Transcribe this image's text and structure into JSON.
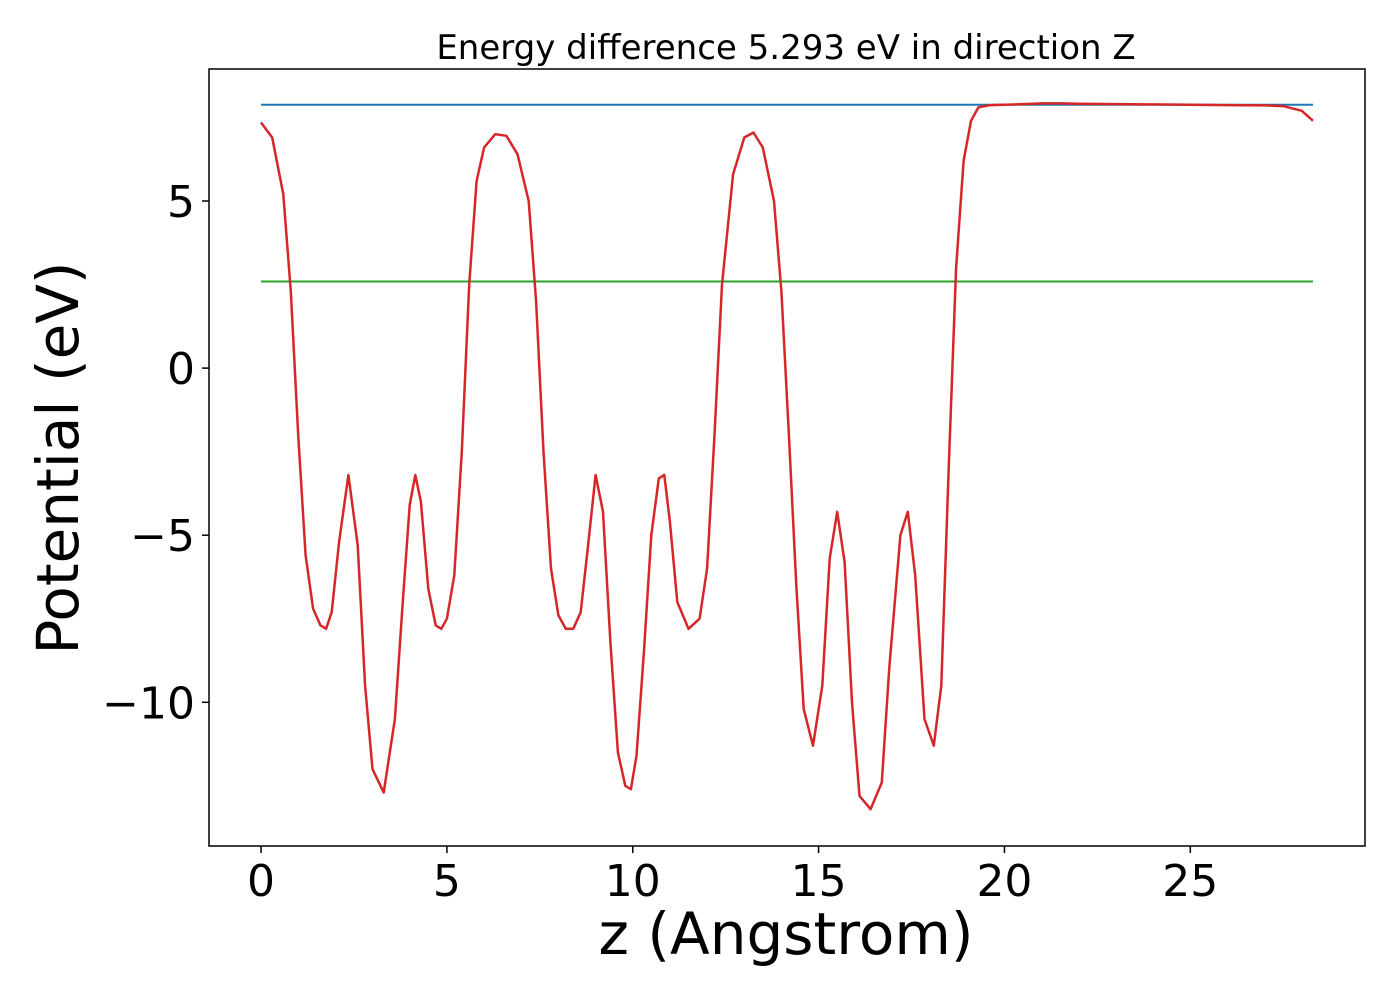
{
  "chart_data": {
    "type": "line",
    "title": "Energy difference 5.293 eV in direction Z",
    "xlabel": "z (Angstrom)",
    "ylabel": "Potential (eV)",
    "xlim": [
      -1.4,
      29.7
    ],
    "ylim": [
      -14.3,
      8.95
    ],
    "xticks": [
      0,
      5,
      10,
      15,
      20,
      25
    ],
    "xtick_labels": [
      "0",
      "5",
      "10",
      "15",
      "20",
      "25"
    ],
    "yticks": [
      -10,
      -5,
      0,
      5
    ],
    "ytick_labels": [
      "−10",
      "−5",
      "0",
      "5"
    ],
    "grid": false,
    "series": [
      {
        "color": "#1f77b4",
        "x": [
          0,
          28.3
        ],
        "y": [
          7.88,
          7.88
        ]
      },
      {
        "color": "#2ca02c",
        "x": [
          0,
          28.3
        ],
        "y": [
          2.59,
          2.59
        ]
      },
      {
        "color": "#d62728",
        "x": [
          0,
          0.3,
          0.6,
          0.8,
          1.0,
          1.2,
          1.4,
          1.6,
          1.75,
          1.9,
          2.1,
          2.35,
          2.6,
          2.8,
          3.0,
          3.3,
          3.6,
          3.8,
          4.0,
          4.15,
          4.3,
          4.5,
          4.7,
          4.85,
          5.0,
          5.2,
          5.4,
          5.6,
          5.8,
          6.0,
          6.3,
          6.6,
          6.9,
          7.2,
          7.4,
          7.6,
          7.8,
          8.0,
          8.2,
          8.4,
          8.6,
          8.8,
          9.0,
          9.2,
          9.4,
          9.6,
          9.8,
          9.95,
          10.1,
          10.3,
          10.5,
          10.7,
          10.85,
          11.0,
          11.2,
          11.5,
          11.8,
          12.0,
          12.2,
          12.4,
          12.7,
          13.0,
          13.25,
          13.5,
          13.8,
          14.0,
          14.2,
          14.4,
          14.6,
          14.85,
          15.1,
          15.3,
          15.5,
          15.7,
          15.9,
          16.1,
          16.4,
          16.7,
          16.9,
          17.2,
          17.4,
          17.6,
          17.85,
          18.1,
          18.3,
          18.5,
          18.7,
          18.9,
          19.1,
          19.3,
          19.6,
          20.0,
          20.5,
          21.0,
          21.5,
          22.0,
          23.0,
          24.0,
          25.0,
          26.0,
          27.0,
          27.5,
          28.0,
          28.3
        ],
        "y": [
          7.35,
          6.9,
          5.2,
          2.3,
          -2.0,
          -5.6,
          -7.2,
          -7.7,
          -7.8,
          -7.3,
          -5.2,
          -3.2,
          -5.3,
          -9.5,
          -12.0,
          -12.7,
          -10.5,
          -7.2,
          -4.1,
          -3.2,
          -4.0,
          -6.6,
          -7.7,
          -7.8,
          -7.5,
          -6.2,
          -2.5,
          2.5,
          5.6,
          6.6,
          7.0,
          6.95,
          6.4,
          5.0,
          2.0,
          -2.5,
          -6.0,
          -7.4,
          -7.8,
          -7.8,
          -7.3,
          -5.3,
          -3.2,
          -4.3,
          -8.2,
          -11.5,
          -12.5,
          -12.6,
          -11.6,
          -8.5,
          -5.0,
          -3.3,
          -3.2,
          -4.6,
          -7.0,
          -7.8,
          -7.5,
          -6.0,
          -2.0,
          2.5,
          5.8,
          6.9,
          7.05,
          6.6,
          5.0,
          2.3,
          -2.0,
          -6.5,
          -10.2,
          -11.3,
          -9.5,
          -5.7,
          -4.3,
          -5.8,
          -10.0,
          -12.8,
          -13.2,
          -12.4,
          -9.0,
          -5.0,
          -4.3,
          -6.2,
          -10.5,
          -11.3,
          -9.5,
          -3.0,
          3.0,
          6.2,
          7.4,
          7.8,
          7.87,
          7.88,
          7.9,
          7.92,
          7.92,
          7.91,
          7.9,
          7.89,
          7.88,
          7.87,
          7.86,
          7.84,
          7.7,
          7.4
        ]
      }
    ]
  }
}
